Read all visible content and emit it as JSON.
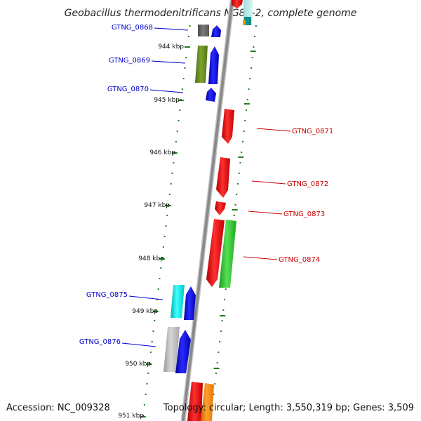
{
  "title": "Geobacillus thermodenitrificans NG80-2, complete genome",
  "footer": {
    "accession": "Accession: NC_009328",
    "topology": "Topology: circular; Length: 3,550,319 bp; Genes: 3,509"
  },
  "colors": {
    "forward_label": "#0000cc",
    "reverse_label": "#cc0000",
    "tick": "#1f7f1f",
    "backbone": "#8a8a8a"
  },
  "kbp_labels": [
    "944 kbp",
    "945 kbp",
    "946 kbp",
    "947 kbp",
    "948 kbp",
    "949 kbp",
    "950 kbp",
    "951 kbp"
  ],
  "genes": [
    {
      "id": "GTNG_0868",
      "strand": "forward",
      "cog_color": "#666666",
      "icon": "grey-cog-block"
    },
    {
      "id": "GTNG_0869",
      "strand": "forward",
      "cog_color": "#6b8e23",
      "icon": "olive-cog-block"
    },
    {
      "id": "GTNG_0870",
      "strand": "forward",
      "cog_color": "#0000ff",
      "icon": "blue-gene-arrow"
    },
    {
      "id": "GTNG_0871",
      "strand": "reverse",
      "cog_color": "#ff0000",
      "icon": "red-gene-arrow"
    },
    {
      "id": "GTNG_0872",
      "strand": "reverse",
      "cog_color": "#ff0000",
      "icon": "red-gene-arrow"
    },
    {
      "id": "GTNG_0873",
      "strand": "reverse",
      "cog_color": "#ff0000",
      "icon": "red-gene-arrow"
    },
    {
      "id": "GTNG_0874",
      "strand": "reverse",
      "cog_color": "#33cc33",
      "icon": "green-cog-block"
    },
    {
      "id": "GTNG_0875",
      "strand": "forward",
      "cog_color": "#00e5e5",
      "icon": "cyan-cog-block"
    },
    {
      "id": "GTNG_0876",
      "strand": "forward",
      "cog_color": "#bbbbbb",
      "icon": "light-grey-cog-block"
    }
  ]
}
